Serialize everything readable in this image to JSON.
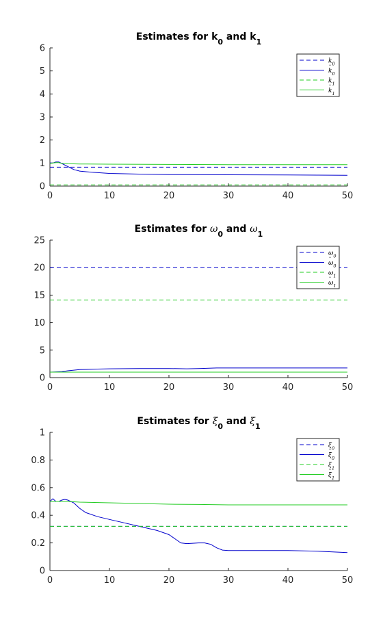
{
  "chart_data": [
    {
      "type": "line",
      "title_parts": [
        {
          "t": "Estimates for ",
          "sym": false
        },
        {
          "t": "k",
          "sym": false
        },
        {
          "t": "0",
          "sub": true
        },
        {
          "t": " and ",
          "sym": false
        },
        {
          "t": "k",
          "sym": false
        },
        {
          "t": "1",
          "sub": true
        }
      ],
      "xlim": [
        0,
        50
      ],
      "ylim": [
        0,
        6
      ],
      "xticks": [
        0,
        10,
        20,
        30,
        40,
        50
      ],
      "yticks": [
        0,
        1,
        2,
        3,
        4,
        5,
        6
      ],
      "legend_position": "top-right",
      "series": [
        {
          "name": "k_0",
          "label_base": "k",
          "label_hat": false,
          "label_sub": "0",
          "color": "#0000cc",
          "dash": true,
          "x": [
            0,
            50
          ],
          "y": [
            0.82,
            0.82
          ]
        },
        {
          "name": "k̂_0",
          "label_base": "k",
          "label_hat": true,
          "label_sub": "0",
          "color": "#0000cc",
          "dash": false,
          "x": [
            0,
            0.5,
            1,
            1.5,
            2,
            3,
            4,
            5,
            7,
            10,
            15,
            20,
            30,
            40,
            50
          ],
          "y": [
            1.0,
            1.0,
            1.05,
            1.05,
            0.98,
            0.85,
            0.72,
            0.65,
            0.6,
            0.55,
            0.52,
            0.5,
            0.49,
            0.48,
            0.47
          ]
        },
        {
          "name": "k_1",
          "label_base": "k",
          "label_hat": false,
          "label_sub": "1",
          "color": "#22cc22",
          "dash": true,
          "x": [
            0,
            50
          ],
          "y": [
            0.05,
            0.05
          ]
        },
        {
          "name": "k̂_1",
          "label_base": "k",
          "label_hat": true,
          "label_sub": "1",
          "color": "#22cc22",
          "dash": false,
          "x": [
            0,
            0.5,
            1,
            1.5,
            2,
            3,
            5,
            10,
            20,
            30,
            40,
            50
          ],
          "y": [
            0.98,
            1.0,
            1.02,
            1.02,
            0.99,
            0.97,
            0.96,
            0.95,
            0.94,
            0.93,
            0.93,
            0.93
          ]
        }
      ]
    },
    {
      "type": "line",
      "title_parts": [
        {
          "t": "Estimates for ",
          "sym": false
        },
        {
          "t": "ω",
          "sym": true
        },
        {
          "t": "0",
          "sub": true
        },
        {
          "t": " and ",
          "sym": false
        },
        {
          "t": "ω",
          "sym": true
        },
        {
          "t": "1",
          "sub": true
        }
      ],
      "xlim": [
        0,
        50
      ],
      "ylim": [
        0,
        25
      ],
      "xticks": [
        0,
        10,
        20,
        30,
        40,
        50
      ],
      "yticks": [
        0,
        5,
        10,
        15,
        20,
        25
      ],
      "legend_position": "top-right",
      "series": [
        {
          "name": "ω_0",
          "label_base": "ω",
          "label_hat": false,
          "label_sub": "0",
          "color": "#0000cc",
          "dash": true,
          "x": [
            0,
            50
          ],
          "y": [
            20,
            20
          ]
        },
        {
          "name": "ω̂_0",
          "label_base": "ω",
          "label_hat": true,
          "label_sub": "0",
          "color": "#0000cc",
          "dash": false,
          "x": [
            0,
            1,
            2,
            3,
            5,
            8,
            10,
            15,
            20,
            23,
            25,
            28,
            30,
            40,
            50
          ],
          "y": [
            1.0,
            1.05,
            1.1,
            1.25,
            1.45,
            1.55,
            1.6,
            1.65,
            1.65,
            1.6,
            1.65,
            1.75,
            1.75,
            1.75,
            1.75
          ]
        },
        {
          "name": "ω_1",
          "label_base": "ω",
          "label_hat": false,
          "label_sub": "1",
          "color": "#22cc22",
          "dash": true,
          "x": [
            0,
            50
          ],
          "y": [
            14.1,
            14.1
          ]
        },
        {
          "name": "ω̂_1",
          "label_base": "ω",
          "label_hat": true,
          "label_sub": "1",
          "color": "#22cc22",
          "dash": false,
          "x": [
            0,
            10,
            20,
            30,
            40,
            50
          ],
          "y": [
            1.0,
            1.0,
            1.0,
            1.0,
            1.0,
            1.0
          ]
        }
      ]
    },
    {
      "type": "line",
      "title_parts": [
        {
          "t": "Estimates for ",
          "sym": false
        },
        {
          "t": "ξ",
          "sym": true
        },
        {
          "t": "0",
          "sub": true
        },
        {
          "t": " and ",
          "sym": false
        },
        {
          "t": "ξ",
          "sym": true
        },
        {
          "t": "1",
          "sub": true
        }
      ],
      "xlim": [
        0,
        50
      ],
      "ylim": [
        0,
        1
      ],
      "xticks": [
        0,
        10,
        20,
        30,
        40,
        50
      ],
      "yticks": [
        0,
        0.2,
        0.4,
        0.6,
        0.8,
        1
      ],
      "legend_position": "top-right",
      "series": [
        {
          "name": "ξ_0",
          "label_base": "ξ",
          "label_hat": false,
          "label_sub": "0",
          "color": "#0000cc",
          "dash": true,
          "x": [
            0,
            50
          ],
          "y": [
            0.32,
            0.32
          ]
        },
        {
          "name": "ξ̂_0",
          "label_base": "ξ",
          "label_hat": true,
          "label_sub": "0",
          "color": "#0000cc",
          "dash": false,
          "x": [
            0,
            0.5,
            1,
            1.5,
            2,
            2.5,
            3,
            4,
            5,
            6,
            8,
            10,
            12,
            15,
            18,
            20,
            21,
            22,
            23,
            25,
            26,
            27,
            28,
            29,
            30,
            35,
            40,
            45,
            50
          ],
          "y": [
            0.5,
            0.52,
            0.5,
            0.5,
            0.51,
            0.515,
            0.51,
            0.49,
            0.45,
            0.42,
            0.39,
            0.37,
            0.35,
            0.32,
            0.29,
            0.26,
            0.23,
            0.2,
            0.195,
            0.2,
            0.2,
            0.19,
            0.165,
            0.148,
            0.145,
            0.145,
            0.145,
            0.14,
            0.13
          ]
        },
        {
          "name": "ξ_1",
          "label_base": "ξ",
          "label_hat": false,
          "label_sub": "1",
          "color": "#22cc22",
          "dash": true,
          "x": [
            0,
            50
          ],
          "y": [
            0.32,
            0.32
          ]
        },
        {
          "name": "ξ̂_1",
          "label_base": "ξ",
          "label_hat": true,
          "label_sub": "1",
          "color": "#22cc22",
          "dash": false,
          "x": [
            0,
            1,
            2,
            3,
            5,
            10,
            15,
            20,
            25,
            30,
            40,
            50
          ],
          "y": [
            0.5,
            0.5,
            0.5,
            0.5,
            0.495,
            0.49,
            0.485,
            0.48,
            0.478,
            0.475,
            0.475,
            0.475
          ]
        }
      ]
    }
  ]
}
